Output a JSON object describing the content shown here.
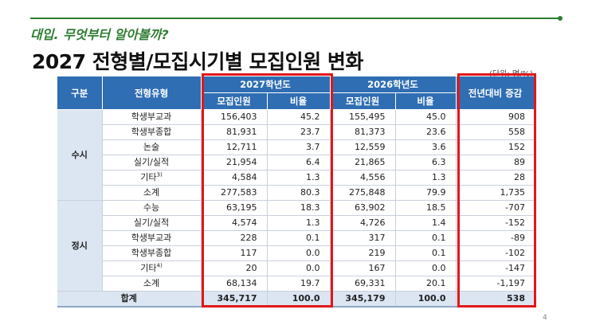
{
  "header": {
    "subtitle": "대입. 무엇부터 알아볼까?",
    "title": "2027 전형별/모집시기별 모집인원 변화",
    "unit": "(단위: 명/%)",
    "accent_color": "#2e7d32"
  },
  "table": {
    "col_group": "구분",
    "col_type": "전형유형",
    "year_2027": "2027학년도",
    "year_2026": "2026학년도",
    "col_count": "모집인원",
    "col_ratio": "비율",
    "col_change": "전년대비 증감",
    "header_color": "#2f6eb3",
    "groups": [
      {
        "label": "수시",
        "rows": [
          {
            "type": "학생부교과",
            "note": "",
            "c27": "156,403",
            "r27": "45.2",
            "c26": "155,495",
            "r26": "45.0",
            "chg": "908"
          },
          {
            "type": "학생부종합",
            "note": "",
            "c27": "81,931",
            "r27": "23.7",
            "c26": "81,373",
            "r26": "23.6",
            "chg": "558"
          },
          {
            "type": "논술",
            "note": "",
            "c27": "12,711",
            "r27": "3.7",
            "c26": "12,559",
            "r26": "3.6",
            "chg": "152"
          },
          {
            "type": "실기/실적",
            "note": "",
            "c27": "21,954",
            "r27": "6.4",
            "c26": "21,865",
            "r26": "6.3",
            "chg": "89"
          },
          {
            "type": "기타",
            "note": "3)",
            "c27": "4,584",
            "r27": "1.3",
            "c26": "4,556",
            "r26": "1.3",
            "chg": "28"
          },
          {
            "type": "소계",
            "note": "",
            "c27": "277,583",
            "r27": "80.3",
            "c26": "275,848",
            "r26": "79.9",
            "chg": "1,735"
          }
        ]
      },
      {
        "label": "정시",
        "rows": [
          {
            "type": "수능",
            "note": "",
            "c27": "63,195",
            "r27": "18.3",
            "c26": "63,902",
            "r26": "18.5",
            "chg": "-707"
          },
          {
            "type": "실기/실적",
            "note": "",
            "c27": "4,574",
            "r27": "1.3",
            "c26": "4,726",
            "r26": "1.4",
            "chg": "-152"
          },
          {
            "type": "학생부교과",
            "note": "",
            "c27": "228",
            "r27": "0.1",
            "c26": "317",
            "r26": "0.1",
            "chg": "-89"
          },
          {
            "type": "학생부종합",
            "note": "",
            "c27": "117",
            "r27": "0.0",
            "c26": "219",
            "r26": "0.1",
            "chg": "-102"
          },
          {
            "type": "기타",
            "note": "4)",
            "c27": "20",
            "r27": "0.0",
            "c26": "167",
            "r26": "0.0",
            "chg": "-147"
          },
          {
            "type": "소계",
            "note": "",
            "c27": "68,134",
            "r27": "19.7",
            "c26": "69,331",
            "r26": "20.1",
            "chg": "-1,197"
          }
        ]
      }
    ],
    "total": {
      "label": "합계",
      "c27": "345,717",
      "r27": "100.0",
      "c26": "345,179",
      "r26": "100.0",
      "chg": "538"
    }
  },
  "highlight_color": "#e0181b",
  "page_number": "4"
}
